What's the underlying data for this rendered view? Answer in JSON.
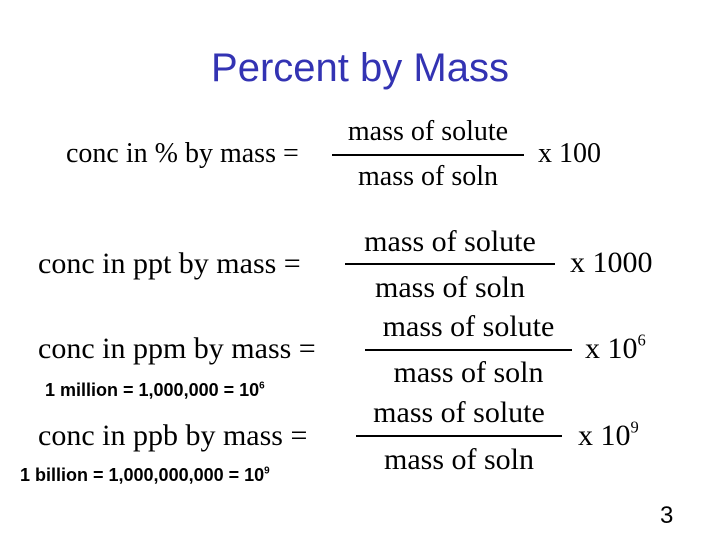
{
  "title": "Percent by Mass",
  "formulas": [
    {
      "lhs": "conc in % by mass =",
      "numerator": "mass of solute",
      "denominator": "mass of soln",
      "factor": "x 100"
    },
    {
      "lhs": "conc in ppt by mass =",
      "numerator": "mass of solute",
      "denominator": "mass of soln",
      "factor": "x 1000"
    },
    {
      "lhs": "conc in ppm by mass =",
      "numerator": "mass of solute",
      "denominator": "mass of soln",
      "factor": "x 10",
      "exponent": "6"
    },
    {
      "lhs": "conc in ppb by mass =",
      "numerator": "mass of solute",
      "denominator": "mass of soln",
      "factor": "x 10",
      "exponent": "9"
    }
  ],
  "notes": [
    {
      "text": "1 million = 1,000,000 = 10",
      "exponent": "6"
    },
    {
      "text": "1 billion = 1,000,000,000 = 10",
      "exponent": "9"
    }
  ],
  "page_number": "3"
}
